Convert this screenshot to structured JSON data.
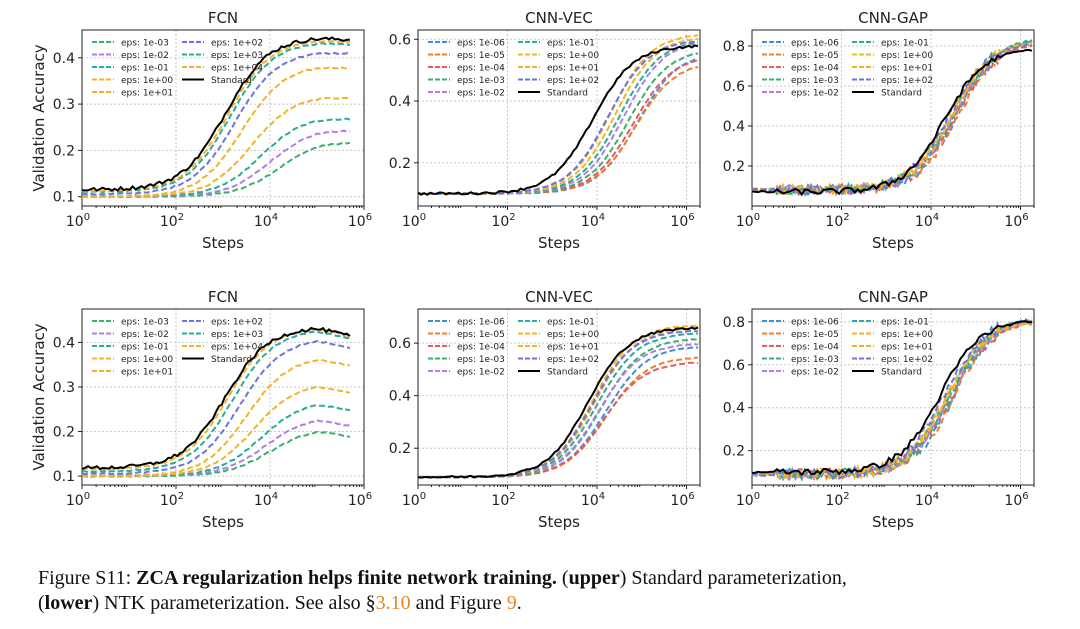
{
  "figure": {
    "xlabel": "Steps",
    "ylabel": "Validation Accuracy",
    "colors": {
      "eps: 1e-06": "#3f8fe0",
      "eps: 1e-05": "#f07f2c",
      "eps: 1e-04": "#e35d5d",
      "eps: 1e-03": "#3ab06e",
      "eps: 1e-02": "#b07ee8",
      "eps: 1e-01": "#2aab9b",
      "eps: 1e+00": "#f0b42a",
      "eps: 1e+01": "#f0b42a",
      "eps: 1e+02": "#6b74e0",
      "eps: 1e+03": "#2aab9b",
      "eps: 1e+04": "#f0b42a",
      "Standard": "#000000"
    }
  },
  "chart_data": [
    {
      "type": "line",
      "id": "upper-fcn",
      "title": "FCN",
      "xscale": "log",
      "xlim": [
        1,
        1000000
      ],
      "ylim": [
        0.08,
        0.46
      ],
      "yticks": [
        0.1,
        0.2,
        0.3,
        0.4
      ],
      "xticks_labels": [
        "10^0",
        "10^2",
        "10^4",
        "10^6"
      ],
      "x_end": 500000,
      "legend_left": [
        "eps: 1e-03",
        "eps: 1e-02",
        "eps: 1e-01",
        "eps: 1e+00",
        "eps: 1e+01"
      ],
      "legend_right": [
        "eps: 1e+02",
        "eps: 1e+03",
        "eps: 1e+04",
        "Standard"
      ],
      "colors": [
        "#3f8fe0",
        "#f07f2c",
        "#e35d5d",
        "#3ab06e",
        "#b07ee8",
        "#2aab9b",
        "#f0b42a",
        "#6b74e0"
      ],
      "series": [
        {
          "name": "eps: 1e-03",
          "final": 0.22,
          "mid": 4.2,
          "start": 0.1
        },
        {
          "name": "eps: 1e-02",
          "final": 0.245,
          "mid": 4.0,
          "start": 0.1
        },
        {
          "name": "eps: 1e-01",
          "final": 0.27,
          "mid": 3.8,
          "start": 0.1
        },
        {
          "name": "eps: 1e+00",
          "final": 0.315,
          "mid": 3.6,
          "start": 0.1
        },
        {
          "name": "eps: 1e+01",
          "final": 0.38,
          "mid": 3.4,
          "start": 0.1
        },
        {
          "name": "eps: 1e+02",
          "final": 0.41,
          "mid": 3.25,
          "start": 0.105
        },
        {
          "name": "eps: 1e+03",
          "final": 0.43,
          "mid": 3.15,
          "start": 0.11
        },
        {
          "name": "eps: 1e+04",
          "final": 0.435,
          "mid": 3.1,
          "start": 0.112
        },
        {
          "name": "Standard",
          "final": 0.44,
          "mid": 3.05,
          "start": 0.115
        }
      ]
    },
    {
      "type": "line",
      "id": "upper-cnnvec",
      "title": "CNN-VEC",
      "xscale": "log",
      "xlim": [
        1,
        2000000
      ],
      "ylim": [
        0.06,
        0.63
      ],
      "yticks": [
        0.2,
        0.4,
        0.6
      ],
      "xticks_labels": [
        "10^0",
        "10^2",
        "10^4",
        "10^6"
      ],
      "x_end": 1800000,
      "legend_left": [
        "eps: 1e-06",
        "eps: 1e-05",
        "eps: 1e-04",
        "eps: 1e-03",
        "eps: 1e-02"
      ],
      "legend_right": [
        "eps: 1e-01",
        "eps: 1e+00",
        "eps: 1e+01",
        "eps: 1e+02",
        "Standard"
      ],
      "colors": [
        "#3f8fe0",
        "#f07f2c",
        "#e35d5d",
        "#3ab06e",
        "#b07ee8",
        "#2aab9b",
        "#f0b42a",
        "#6b74e0"
      ],
      "series": [
        {
          "name": "eps: 1e-06",
          "final": 0.56,
          "mid": 4.9,
          "start": 0.1
        },
        {
          "name": "eps: 1e-05",
          "final": 0.53,
          "mid": 4.85,
          "start": 0.1
        },
        {
          "name": "eps: 1e-04",
          "final": 0.55,
          "mid": 4.8,
          "start": 0.1
        },
        {
          "name": "eps: 1e-03",
          "final": 0.57,
          "mid": 4.7,
          "start": 0.1
        },
        {
          "name": "eps: 1e-02",
          "final": 0.6,
          "mid": 4.6,
          "start": 0.1
        },
        {
          "name": "eps: 1e-01",
          "final": 0.6,
          "mid": 4.5,
          "start": 0.1
        },
        {
          "name": "eps: 1e+00",
          "final": 0.61,
          "mid": 4.4,
          "start": 0.1
        },
        {
          "name": "eps: 1e+01",
          "final": 0.62,
          "mid": 4.3,
          "start": 0.1
        },
        {
          "name": "eps: 1e+02",
          "final": 0.6,
          "mid": 4.25,
          "start": 0.1
        },
        {
          "name": "Standard",
          "final": 0.58,
          "mid": 3.9,
          "start": 0.1
        }
      ]
    },
    {
      "type": "line",
      "id": "upper-cnngap",
      "title": "CNN-GAP",
      "xscale": "log",
      "xlim": [
        1,
        2000000
      ],
      "ylim": [
        0.0,
        0.88
      ],
      "yticks": [
        0.2,
        0.4,
        0.6,
        0.8
      ],
      "xticks_labels": [
        "10^0",
        "10^2",
        "10^4",
        "10^6"
      ],
      "x_end": 1800000,
      "legend_left": [
        "eps: 1e-06",
        "eps: 1e-05",
        "eps: 1e-04",
        "eps: 1e-03",
        "eps: 1e-02"
      ],
      "legend_right": [
        "eps: 1e-01",
        "eps: 1e+00",
        "eps: 1e+01",
        "eps: 1e+02",
        "Standard"
      ],
      "colors": [
        "#3f8fe0",
        "#f07f2c",
        "#e35d5d",
        "#3ab06e",
        "#b07ee8",
        "#2aab9b",
        "#f0b42a",
        "#6b74e0"
      ],
      "series": [
        {
          "name": "eps: 1e-06",
          "final": 0.84,
          "mid": 4.6,
          "start": 0.08
        },
        {
          "name": "eps: 1e-05",
          "final": 0.83,
          "mid": 4.6,
          "start": 0.08
        },
        {
          "name": "eps: 1e-04",
          "final": 0.82,
          "mid": 4.55,
          "start": 0.08
        },
        {
          "name": "eps: 1e-03",
          "final": 0.84,
          "mid": 4.5,
          "start": 0.08
        },
        {
          "name": "eps: 1e-02",
          "final": 0.83,
          "mid": 4.5,
          "start": 0.08
        },
        {
          "name": "eps: 1e-01",
          "final": 0.84,
          "mid": 4.5,
          "start": 0.08
        },
        {
          "name": "eps: 1e+00",
          "final": 0.83,
          "mid": 4.45,
          "start": 0.08
        },
        {
          "name": "eps: 1e+01",
          "final": 0.82,
          "mid": 4.45,
          "start": 0.08
        },
        {
          "name": "eps: 1e+02",
          "final": 0.82,
          "mid": 4.4,
          "start": 0.08
        },
        {
          "name": "Standard",
          "final": 0.79,
          "mid": 4.3,
          "start": 0.07
        }
      ]
    },
    {
      "type": "line",
      "id": "lower-fcn",
      "title": "FCN",
      "xscale": "log",
      "xlim": [
        1,
        1000000
      ],
      "ylim": [
        0.08,
        0.475
      ],
      "yticks": [
        0.1,
        0.2,
        0.3,
        0.4
      ],
      "xticks_labels": [
        "10^0",
        "10^2",
        "10^4",
        "10^6"
      ],
      "x_end": 500000,
      "legend_left": [
        "eps: 1e-03",
        "eps: 1e-02",
        "eps: 1e-01",
        "eps: 1e+00",
        "eps: 1e+01"
      ],
      "legend_right": [
        "eps: 1e+02",
        "eps: 1e+03",
        "eps: 1e+04",
        "Standard"
      ],
      "colors": [
        "#3f8fe0",
        "#f07f2c",
        "#e35d5d",
        "#3ab06e",
        "#b07ee8",
        "#2aab9b",
        "#f0b42a",
        "#6b74e0"
      ],
      "series": [
        {
          "name": "eps: 1e-03",
          "final": 0.19,
          "mid": 4.0,
          "start": 0.1
        },
        {
          "name": "eps: 1e-02",
          "final": 0.215,
          "mid": 3.9,
          "start": 0.1
        },
        {
          "name": "eps: 1e-01",
          "final": 0.25,
          "mid": 3.8,
          "start": 0.1
        },
        {
          "name": "eps: 1e+00",
          "final": 0.29,
          "mid": 3.65,
          "start": 0.1
        },
        {
          "name": "eps: 1e+01",
          "final": 0.35,
          "mid": 3.5,
          "start": 0.1
        },
        {
          "name": "eps: 1e+02",
          "final": 0.39,
          "mid": 3.35,
          "start": 0.105
        },
        {
          "name": "eps: 1e+03",
          "final": 0.41,
          "mid": 3.2,
          "start": 0.11
        },
        {
          "name": "eps: 1e+04",
          "final": 0.415,
          "mid": 3.1,
          "start": 0.115
        },
        {
          "name": "Standard",
          "final": 0.415,
          "mid": 3.05,
          "start": 0.118
        }
      ]
    },
    {
      "type": "line",
      "id": "lower-cnnvec",
      "title": "CNN-VEC",
      "xscale": "log",
      "xlim": [
        1,
        2000000
      ],
      "ylim": [
        0.06,
        0.73
      ],
      "yticks": [
        0.2,
        0.4,
        0.6
      ],
      "xticks_labels": [
        "10^0",
        "10^2",
        "10^4",
        "10^6"
      ],
      "x_end": 1800000,
      "legend_left": [
        "eps: 1e-06",
        "eps: 1e-05",
        "eps: 1e-04",
        "eps: 1e-03",
        "eps: 1e-02"
      ],
      "legend_right": [
        "eps: 1e-01",
        "eps: 1e+00",
        "eps: 1e+01",
        "eps: 1e+02",
        "Standard"
      ],
      "colors": [
        "#3f8fe0",
        "#f07f2c",
        "#e35d5d",
        "#3ab06e",
        "#b07ee8",
        "#2aab9b",
        "#f0b42a",
        "#6b74e0"
      ],
      "series": [
        {
          "name": "eps: 1e-06",
          "final": 0.59,
          "mid": 4.2,
          "start": 0.09
        },
        {
          "name": "eps: 1e-05",
          "final": 0.55,
          "mid": 4.2,
          "start": 0.09
        },
        {
          "name": "eps: 1e-04",
          "final": 0.53,
          "mid": 4.15,
          "start": 0.09
        },
        {
          "name": "eps: 1e-03",
          "final": 0.62,
          "mid": 4.1,
          "start": 0.09
        },
        {
          "name": "eps: 1e-02",
          "final": 0.6,
          "mid": 4.05,
          "start": 0.09
        },
        {
          "name": "eps: 1e-01",
          "final": 0.64,
          "mid": 4.0,
          "start": 0.09
        },
        {
          "name": "eps: 1e+00",
          "final": 0.66,
          "mid": 3.95,
          "start": 0.09
        },
        {
          "name": "eps: 1e+01",
          "final": 0.67,
          "mid": 3.9,
          "start": 0.09
        },
        {
          "name": "eps: 1e+02",
          "final": 0.65,
          "mid": 3.9,
          "start": 0.09
        },
        {
          "name": "Standard",
          "final": 0.66,
          "mid": 3.8,
          "start": 0.09
        }
      ]
    },
    {
      "type": "line",
      "id": "lower-cnngap",
      "title": "CNN-GAP",
      "xscale": "log",
      "xlim": [
        1,
        2000000
      ],
      "ylim": [
        0.04,
        0.86
      ],
      "yticks": [
        0.2,
        0.4,
        0.6,
        0.8
      ],
      "xticks_labels": [
        "10^0",
        "10^2",
        "10^4",
        "10^6"
      ],
      "x_end": 1800000,
      "legend_left": [
        "eps: 1e-06",
        "eps: 1e-05",
        "eps: 1e-04",
        "eps: 1e-03",
        "eps: 1e-02"
      ],
      "legend_right": [
        "eps: 1e-01",
        "eps: 1e+00",
        "eps: 1e+01",
        "eps: 1e+02",
        "Standard"
      ],
      "colors": [
        "#3f8fe0",
        "#f07f2c",
        "#e35d5d",
        "#3ab06e",
        "#b07ee8",
        "#2aab9b",
        "#f0b42a",
        "#6b74e0"
      ],
      "series": [
        {
          "name": "eps: 1e-06",
          "final": 0.82,
          "mid": 4.5,
          "start": 0.09
        },
        {
          "name": "eps: 1e-05",
          "final": 0.81,
          "mid": 4.5,
          "start": 0.09
        },
        {
          "name": "eps: 1e-04",
          "final": 0.81,
          "mid": 4.45,
          "start": 0.09
        },
        {
          "name": "eps: 1e-03",
          "final": 0.82,
          "mid": 4.45,
          "start": 0.09
        },
        {
          "name": "eps: 1e-02",
          "final": 0.81,
          "mid": 4.4,
          "start": 0.09
        },
        {
          "name": "eps: 1e-01",
          "final": 0.82,
          "mid": 4.4,
          "start": 0.09
        },
        {
          "name": "eps: 1e+00",
          "final": 0.81,
          "mid": 4.35,
          "start": 0.09
        },
        {
          "name": "eps: 1e+01",
          "final": 0.81,
          "mid": 4.35,
          "start": 0.09
        },
        {
          "name": "eps: 1e+02",
          "final": 0.82,
          "mid": 4.3,
          "start": 0.09
        },
        {
          "name": "Standard",
          "final": 0.81,
          "mid": 4.2,
          "start": 0.1
        }
      ]
    }
  ],
  "caption": {
    "figure_label": "Figure S11: ",
    "title": "ZCA regularization helps finite network training.",
    "upper_open": " (",
    "upper_word": "upper",
    "upper_text": ") Standard parameterization,",
    "lower_open": "(",
    "lower_word": "lower",
    "lower_text": ") NTK parameterization. See also §",
    "ref_section": "3.10",
    "mid_text": " and Figure ",
    "ref_figure": "9",
    "end_text": "."
  }
}
